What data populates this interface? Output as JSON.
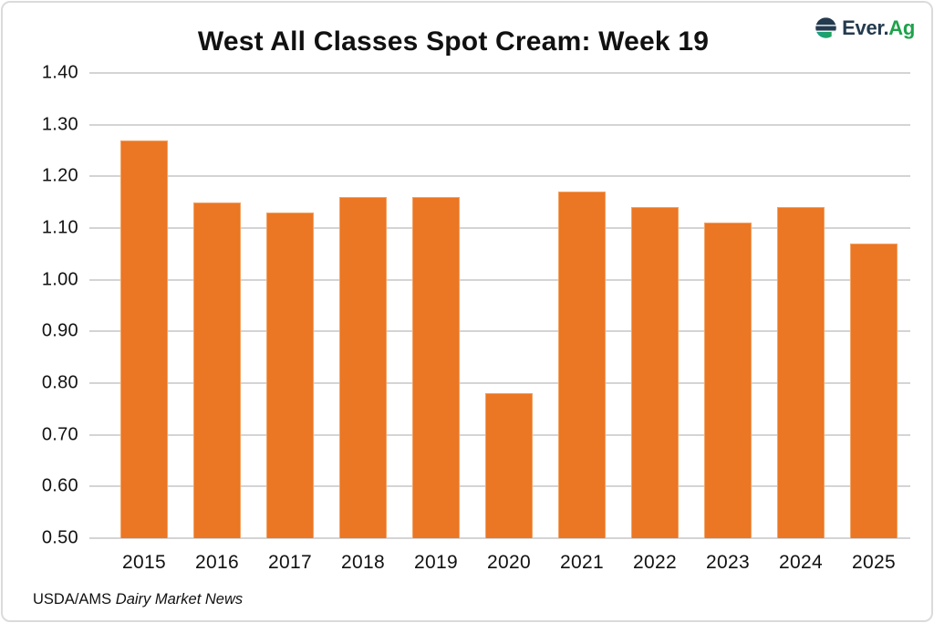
{
  "header": {
    "logo": {
      "name": "Ever.Ag",
      "text_primary": "Ever.",
      "text_secondary": "Ag",
      "primary_color": "#243B4F",
      "secondary_color": "#1FA24B",
      "icon": "everag-e-globe-icon"
    }
  },
  "footer": {
    "source_prefix": "USDA/AMS ",
    "source_italic": "Dairy Market News"
  },
  "chart_data": {
    "type": "bar",
    "title": "West All Classes Spot Cream: Week 19",
    "categories": [
      "2015",
      "2016",
      "2017",
      "2018",
      "2019",
      "2020",
      "2021",
      "2022",
      "2023",
      "2024",
      "2025"
    ],
    "values": [
      1.27,
      1.15,
      1.13,
      1.16,
      1.16,
      0.78,
      1.17,
      1.14,
      1.11,
      1.14,
      1.07
    ],
    "xlabel": "",
    "ylabel": "",
    "ylim": [
      0.5,
      1.4
    ],
    "ytick_step": 0.1,
    "ytick_decimals": 2,
    "grid": "horizontal-only",
    "legend": "none",
    "bar_color": "#EB7623",
    "bar_border_color": "#F2A263",
    "gridline_color": "#D4D4D4",
    "axis_text_color": "#121212"
  }
}
